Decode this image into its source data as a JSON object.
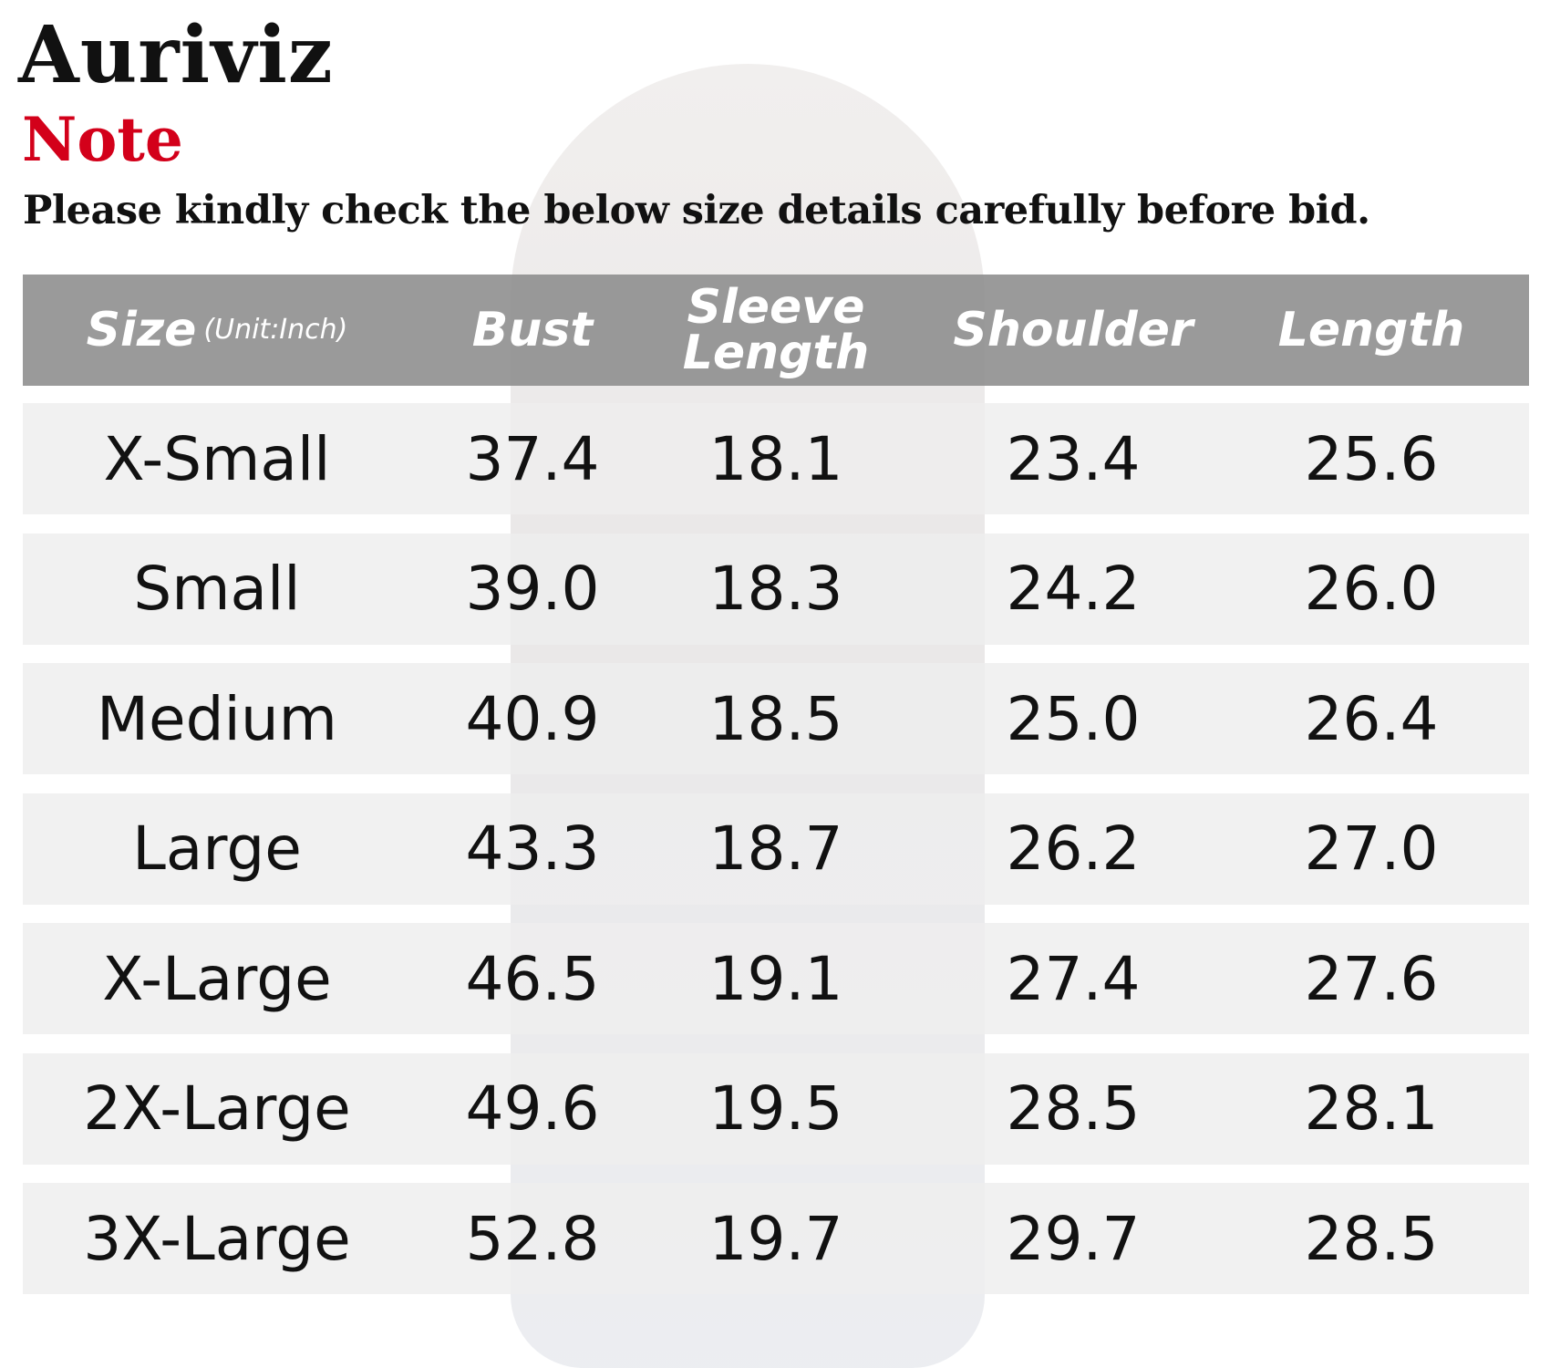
{
  "header": {
    "brand": "Auriviz",
    "note": "Note",
    "notice": "Please kindly check the below size details carefully before bid."
  },
  "table": {
    "columns": [
      {
        "name": "Size",
        "unit": "(Unit:Inch)"
      },
      {
        "name": "Bust"
      },
      {
        "name": "Sleeve Length"
      },
      {
        "name": "Shoulder"
      },
      {
        "name": "Length"
      }
    ],
    "rows": [
      [
        "X-Small",
        "37.4",
        "18.1",
        "23.4",
        "25.6"
      ],
      [
        "Small",
        "39.0",
        "18.3",
        "24.2",
        "26.0"
      ],
      [
        "Medium",
        "40.9",
        "18.5",
        "25.0",
        "26.4"
      ],
      [
        "Large",
        "43.3",
        "18.7",
        "26.2",
        "27.0"
      ],
      [
        "X-Large",
        "46.5",
        "19.1",
        "27.4",
        "27.6"
      ],
      [
        "2X-Large",
        "49.6",
        "19.5",
        "28.5",
        "28.1"
      ],
      [
        "3X-Large",
        "52.8",
        "19.7",
        "29.7",
        "28.5"
      ]
    ]
  }
}
